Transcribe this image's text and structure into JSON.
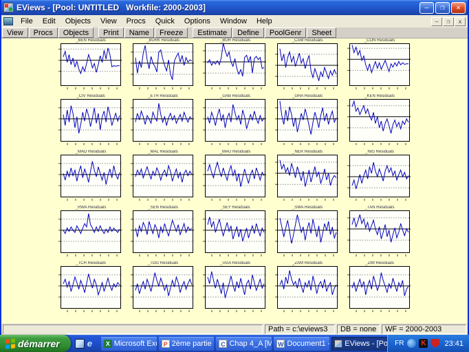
{
  "window": {
    "title": "EViews - [Pool: UNTITLED   Workfile: 2000-2003]",
    "controls": {
      "minimize": "–",
      "restore": "❐",
      "close": "✕"
    }
  },
  "menu": {
    "items": [
      "File",
      "Edit",
      "Objects",
      "View",
      "Procs",
      "Quick",
      "Options",
      "Window",
      "Help"
    ],
    "mdi_controls": {
      "minimize": "–",
      "restore": "❐",
      "close": "x"
    }
  },
  "toolbar": {
    "groups": [
      [
        "View",
        "Procs",
        "Objects"
      ],
      [
        "Print",
        "Name",
        "Freeze"
      ],
      [
        "Estimate",
        "Define",
        "PoolGenr",
        "Sheet"
      ]
    ]
  },
  "charts": {
    "title_suffix": "Residuals",
    "line_color": "#0000bb",
    "grid_color": "#8a8a8a",
    "background": "#ffffd0",
    "items": [
      {
        "name": "_BEN",
        "zero": 0.38,
        "values": [
          0.3,
          0.8,
          -0.2,
          0.5,
          -0.4,
          0.2,
          -0.6,
          -0.1,
          -0.8,
          -1.2,
          -0.6,
          -1.0,
          -0.3,
          0.5,
          0.0,
          -0.7,
          -0.3,
          -1.1,
          -0.4,
          0.4,
          -0.2,
          0.9,
          0.1,
          1.1,
          0.5,
          -0.6,
          -0.5,
          -0.55,
          -0.5,
          -0.5
        ]
      },
      {
        "name": "_BURK",
        "zero": 0.45,
        "values": [
          0.5,
          -0.9,
          0.2,
          -0.4,
          0.9,
          1.6,
          0.3,
          -0.5,
          0.6,
          0.0,
          -0.3,
          -0.8,
          1.0,
          1.2,
          0.4,
          -0.2,
          -0.7,
          0.3,
          -1.0,
          -1.5,
          0.2,
          0.6,
          0.9,
          0.1,
          0.7,
          -0.2,
          0.5,
          0.1,
          0.3,
          0.2
        ]
      },
      {
        "name": "_BUR",
        "zero": 0.42,
        "values": [
          -0.1,
          0.2,
          -0.3,
          0.0,
          -0.2,
          0.1,
          -0.25,
          0.4,
          1.7,
          1.0,
          0.5,
          0.9,
          0.0,
          -0.4,
          0.3,
          -0.6,
          -1.1,
          -0.7,
          -1.3,
          0.4,
          0.6,
          0.0,
          0.5,
          -1.0,
          0.3,
          0.5,
          0.2,
          0.4,
          -0.6,
          -0.5
        ]
      },
      {
        "name": "_CAM",
        "zero": 0.5,
        "values": [
          1.5,
          0.4,
          1.0,
          -0.2,
          0.7,
          1.2,
          0.3,
          0.8,
          -0.1,
          0.5,
          1.1,
          0.2,
          0.6,
          -0.3,
          0.4,
          0.9,
          -0.5,
          -1.1,
          -0.3,
          -0.8,
          -1.4,
          -0.6,
          -1.0,
          -0.2,
          -0.7,
          -1.2,
          -0.5,
          -0.9,
          -0.4,
          -0.8
        ]
      },
      {
        "name": "_CON",
        "zero": 0.36,
        "values": [
          1.3,
          0.6,
          1.1,
          0.4,
          0.8,
          -0.1,
          0.3,
          -0.5,
          -1.0,
          -0.4,
          -1.2,
          -0.7,
          -0.2,
          -0.8,
          -0.3,
          -0.9,
          -0.5,
          -0.1,
          -0.6,
          -1.1,
          -0.4,
          -0.7,
          -0.3,
          -0.6,
          -0.2,
          -0.5,
          -0.3,
          -0.45,
          -0.4,
          -0.4
        ]
      },
      {
        "name": "_CIV",
        "values": [
          0.4,
          -0.6,
          0.8,
          -0.3,
          1.2,
          0.5,
          -0.8,
          0.2,
          -1.3,
          -0.5,
          0.6,
          -0.2,
          0.9,
          0.3,
          -0.7,
          0.1,
          1.0,
          -0.4,
          0.5,
          -1.0,
          0.2,
          0.7,
          -0.3,
          1.1,
          0.4,
          -0.6,
          0.0,
          0.5,
          -0.2,
          0.3
        ]
      },
      {
        "name": "_ETH",
        "values": [
          -0.3,
          0.5,
          -0.1,
          0.7,
          0.2,
          -0.5,
          0.3,
          0.0,
          -0.4,
          0.6,
          0.1,
          -0.2,
          1.4,
          0.4,
          -0.3,
          0.2,
          -0.6,
          0.1,
          0.5,
          -0.1,
          0.3,
          -0.4,
          0.0,
          0.4,
          -0.2,
          0.6,
          0.1,
          -0.3,
          0.2,
          0.0
        ]
      },
      {
        "name": "_GAB",
        "values": [
          0.2,
          -0.4,
          0.6,
          0.1,
          -0.6,
          0.3,
          0.9,
          -0.2,
          0.4,
          -0.8,
          0.1,
          0.5,
          -0.3,
          1.3,
          0.6,
          -0.1,
          0.3,
          -0.5,
          0.8,
          0.2,
          -0.9,
          -0.3,
          0.4,
          -0.1,
          0.7,
          0.0,
          -0.4,
          0.3,
          -0.2,
          0.1
        ]
      },
      {
        "name": "_GHA",
        "values": [
          1.6,
          0.3,
          -0.5,
          0.8,
          -0.2,
          1.1,
          0.4,
          -0.7,
          0.1,
          -1.2,
          -0.4,
          0.5,
          -0.1,
          0.9,
          0.2,
          -0.6,
          -1.4,
          -0.3,
          0.6,
          0.0,
          -0.8,
          0.3,
          1.0,
          -0.2,
          0.5,
          -0.5,
          0.2,
          0.7,
          -0.3,
          0.1
        ]
      },
      {
        "name": "_KEN",
        "zero": 0.4,
        "values": [
          0.9,
          1.4,
          0.5,
          0.8,
          0.2,
          0.6,
          1.0,
          0.3,
          0.7,
          0.1,
          -0.3,
          0.4,
          -0.6,
          0.0,
          -1.0,
          -0.4,
          -1.3,
          -0.6,
          -0.2,
          -0.8,
          -1.5,
          -0.7,
          -0.3,
          -0.9,
          -0.5,
          -1.1,
          -0.4,
          -0.7,
          -0.2,
          -0.5
        ]
      },
      {
        "name": "_MAD",
        "values": [
          0.1,
          -0.5,
          0.3,
          -0.2,
          0.6,
          -0.1,
          0.4,
          -0.6,
          0.2,
          0.8,
          -0.3,
          0.5,
          0.0,
          -0.7,
          0.3,
          1.2,
          0.4,
          -0.2,
          0.7,
          0.1,
          -0.5,
          0.2,
          -0.9,
          -0.1,
          0.5,
          -0.3,
          0.8,
          0.0,
          -0.4,
          0.2
        ]
      },
      {
        "name": "_MAL",
        "values": [
          -0.2,
          0.4,
          0.0,
          0.5,
          -0.3,
          0.2,
          0.7,
          0.1,
          -0.4,
          0.3,
          -0.1,
          0.6,
          0.2,
          -0.5,
          0.1,
          0.4,
          -0.2,
          0.8,
          0.3,
          -0.6,
          0.0,
          0.5,
          -0.3,
          0.2,
          -0.7,
          0.1,
          0.4,
          -0.1,
          0.3,
          0.0
        ]
      },
      {
        "name": "_MAU",
        "values": [
          0.3,
          0.9,
          0.2,
          -0.3,
          0.5,
          1.1,
          0.4,
          -0.2,
          0.6,
          0.0,
          -0.5,
          0.3,
          0.8,
          -0.1,
          0.4,
          -0.6,
          0.1,
          -1.1,
          -0.3,
          0.5,
          -0.2,
          -0.8,
          0.0,
          0.4,
          -0.4,
          0.6,
          0.1,
          -0.5,
          0.2,
          -0.1
        ]
      },
      {
        "name": "_NER",
        "zero": 0.42,
        "values": [
          1.2,
          0.4,
          0.8,
          0.1,
          0.5,
          -0.2,
          0.9,
          0.3,
          -0.4,
          0.6,
          0.0,
          -0.7,
          0.2,
          -1.2,
          -0.5,
          0.3,
          -0.8,
          -0.1,
          0.6,
          -0.3,
          0.1,
          -0.9,
          -0.4,
          0.4,
          -0.6,
          0.0,
          -1.1,
          -0.5,
          -0.2,
          -0.4
        ]
      },
      {
        "name": "_NIG",
        "zero": 0.5,
        "values": [
          -0.8,
          -0.3,
          -1.1,
          -0.5,
          0.2,
          -0.6,
          0.1,
          0.6,
          -0.2,
          0.9,
          0.3,
          1.3,
          0.5,
          0.0,
          0.7,
          0.2,
          -0.4,
          0.5,
          1.0,
          0.4,
          0.8,
          0.1,
          0.5,
          -0.3,
          0.2,
          0.6,
          0.0,
          0.4,
          -0.2,
          0.1
        ]
      },
      {
        "name": "_RWA",
        "values": [
          0.0,
          -0.3,
          0.2,
          -0.1,
          0.3,
          0.0,
          -0.2,
          0.4,
          0.1,
          -0.3,
          0.2,
          0.6,
          0.3,
          1.5,
          0.5,
          0.2,
          -0.2,
          0.3,
          -0.1,
          0.4,
          0.0,
          -0.3,
          0.1,
          -0.2,
          0.3,
          -0.1,
          0.2,
          0.0,
          -0.2,
          0.1
        ]
      },
      {
        "name": "_SEN",
        "values": [
          0.2,
          -0.6,
          0.4,
          -0.1,
          0.7,
          0.3,
          -0.4,
          0.8,
          0.2,
          -0.3,
          0.5,
          0.1,
          -0.7,
          0.3,
          -0.2,
          0.6,
          0.0,
          -0.5,
          0.2,
          0.9,
          0.4,
          -0.1,
          0.5,
          -0.4,
          0.1,
          0.6,
          -0.2,
          0.3,
          0.0,
          0.2
        ]
      },
      {
        "name": "_SEY",
        "values": [
          0.5,
          1.2,
          0.3,
          0.8,
          -0.2,
          0.4,
          1.0,
          0.2,
          -0.5,
          0.1,
          0.7,
          -0.1,
          0.4,
          -0.8,
          -0.2,
          0.3,
          -0.6,
          0.1,
          -1.0,
          -0.4,
          0.2,
          -0.7,
          -0.1,
          0.4,
          -0.3,
          0.6,
          0.0,
          -0.5,
          0.2,
          -0.2
        ]
      },
      {
        "name": "_SWA",
        "values": [
          1.1,
          0.3,
          -0.6,
          0.2,
          0.9,
          -0.1,
          -1.2,
          -0.4,
          0.5,
          1.4,
          0.6,
          -0.2,
          0.3,
          -0.9,
          0.1,
          0.7,
          -0.3,
          1.0,
          0.2,
          -0.6,
          0.4,
          -1.1,
          -0.3,
          0.6,
          0.0,
          0.8,
          -0.4,
          0.3,
          -0.7,
          -0.2
        ]
      },
      {
        "name": "_TAN",
        "zero": 0.42,
        "values": [
          0.4,
          1.0,
          0.2,
          0.7,
          1.3,
          0.5,
          0.9,
          0.1,
          0.6,
          -0.2,
          0.3,
          0.8,
          0.0,
          -0.5,
          0.2,
          -0.9,
          -0.3,
          0.4,
          -0.7,
          -0.1,
          -1.2,
          -0.5,
          0.1,
          -0.8,
          -0.3,
          0.5,
          -0.1,
          -0.6,
          0.0,
          -0.3
        ]
      },
      {
        "name": "_TCH",
        "values": [
          0.2,
          0.6,
          -0.1,
          0.4,
          -0.5,
          0.1,
          0.8,
          0.3,
          -0.3,
          0.5,
          0.0,
          -0.6,
          0.2,
          1.1,
          0.4,
          -0.2,
          0.6,
          0.1,
          -0.8,
          -0.3,
          0.3,
          -0.5,
          0.1,
          0.7,
          0.0,
          -0.4,
          0.2,
          -0.1,
          0.3,
          0.1
        ]
      },
      {
        "name": "_TOG",
        "values": [
          -0.4,
          0.2,
          -0.7,
          -0.1,
          0.4,
          -0.3,
          0.6,
          0.1,
          -0.5,
          0.3,
          1.2,
          0.5,
          0.0,
          0.7,
          0.2,
          -0.4,
          0.1,
          -0.9,
          -0.2,
          0.5,
          -0.1,
          0.8,
          0.3,
          -0.6,
          0.0,
          0.4,
          -0.3,
          0.2,
          0.6,
          0.1
        ]
      },
      {
        "name": "_UGA",
        "values": [
          0.8,
          0.2,
          1.3,
          0.5,
          -0.2,
          0.6,
          0.0,
          -0.7,
          0.3,
          -1.1,
          -0.4,
          0.2,
          0.9,
          0.1,
          -0.5,
          0.4,
          -0.2,
          0.7,
          -0.1,
          -0.8,
          0.2,
          0.5,
          -0.3,
          1.0,
          0.3,
          -0.4,
          0.1,
          0.6,
          -0.2,
          0.2
        ]
      },
      {
        "name": "_ZAM",
        "values": [
          0.1,
          0.5,
          -0.3,
          0.8,
          0.2,
          1.4,
          0.6,
          0.1,
          0.4,
          -0.2,
          0.7,
          0.0,
          -0.6,
          0.3,
          -0.1,
          0.5,
          -0.4,
          0.9,
          0.2,
          -0.7,
          0.1,
          0.4,
          -0.2,
          0.6,
          -0.5,
          0.0,
          0.3,
          -0.8,
          -0.2,
          0.1
        ]
      },
      {
        "name": "_ZIM",
        "values": [
          -0.2,
          0.3,
          -0.5,
          0.1,
          0.6,
          -0.1,
          0.4,
          -0.8,
          0.0,
          0.5,
          -0.3,
          0.9,
          0.3,
          -0.4,
          0.1,
          1.2,
          0.5,
          0.0,
          -0.6,
          0.2,
          -0.2,
          0.7,
          0.1,
          -0.5,
          0.3,
          -0.1,
          0.5,
          -0.9,
          -0.3,
          0.0
        ]
      }
    ]
  },
  "statusbar": {
    "path": "Path = c:\\eviews3",
    "db": "DB = none",
    "wf": "WF = 2000-2003"
  },
  "taskbar": {
    "start_label": "démarrer",
    "tasks": [
      {
        "label": "Microsoft Excel - ...",
        "icon": "excel-icon",
        "glyph": "X",
        "active": false
      },
      {
        "label": "2ème partie",
        "icon": "presentation-icon",
        "glyph": "P",
        "active": false
      },
      {
        "label": "Chap 4_A [Mode...",
        "icon": "slideshow-icon",
        "glyph": "C",
        "active": false
      },
      {
        "label": "Document1 - Mic...",
        "icon": "word-icon",
        "glyph": "W",
        "active": false
      },
      {
        "label": "EViews - [Pool: U...",
        "icon": "eviews-icon",
        "glyph": "",
        "active": true
      }
    ],
    "tray": {
      "lang": "FR",
      "time": "23:41",
      "icons": [
        {
          "name": "msn-icon",
          "glyph": ""
        },
        {
          "name": "kaspersky-icon",
          "glyph": "K"
        },
        {
          "name": "shield-icon",
          "glyph": ""
        }
      ]
    }
  }
}
